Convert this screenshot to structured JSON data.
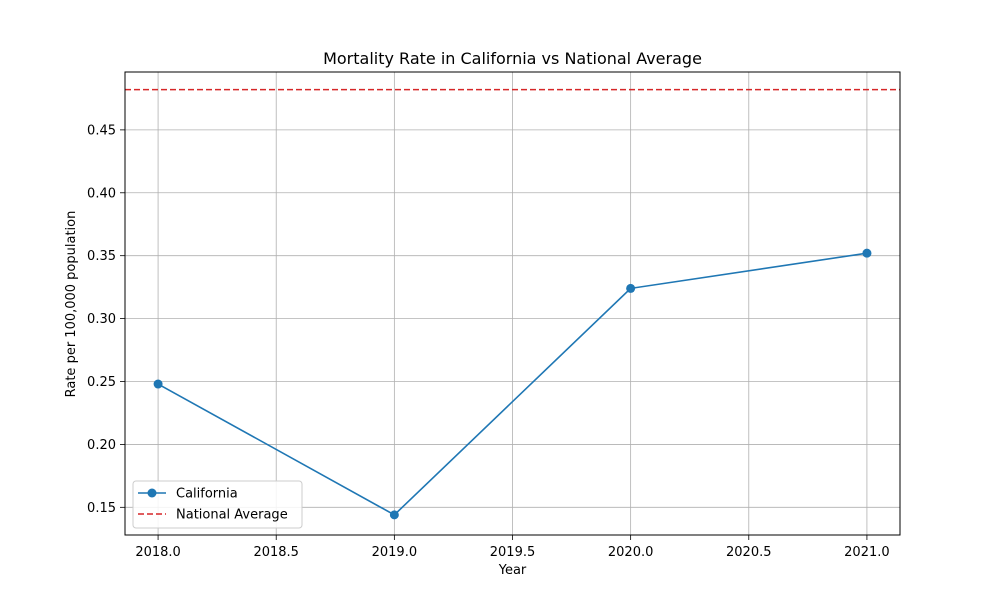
{
  "chart_data": {
    "type": "line",
    "title": "Mortality Rate in California vs National Average",
    "xlabel": "Year",
    "ylabel": "Rate per 100,000 population",
    "xlim": [
      2017.86,
      2021.14
    ],
    "ylim": [
      0.128,
      0.496
    ],
    "xticks": [
      2018.0,
      2018.5,
      2019.0,
      2019.5,
      2020.0,
      2020.5,
      2021.0
    ],
    "xtick_labels": [
      "2018.0",
      "2018.5",
      "2019.0",
      "2019.5",
      "2020.0",
      "2020.5",
      "2021.0"
    ],
    "yticks": [
      0.15,
      0.2,
      0.25,
      0.3,
      0.35,
      0.4,
      0.45
    ],
    "ytick_labels": [
      "0.15",
      "0.20",
      "0.25",
      "0.30",
      "0.35",
      "0.40",
      "0.45"
    ],
    "grid": true,
    "legend_position": "lower-left",
    "series": [
      {
        "name": "California",
        "style": "solid-line-circle-markers",
        "color": "#1f77b4",
        "x": [
          2018,
          2019,
          2020,
          2021
        ],
        "y": [
          0.248,
          0.144,
          0.324,
          0.352
        ]
      }
    ],
    "reference_lines": [
      {
        "name": "National Average",
        "style": "dashed",
        "color": "#d62728",
        "y": 0.482
      }
    ]
  }
}
